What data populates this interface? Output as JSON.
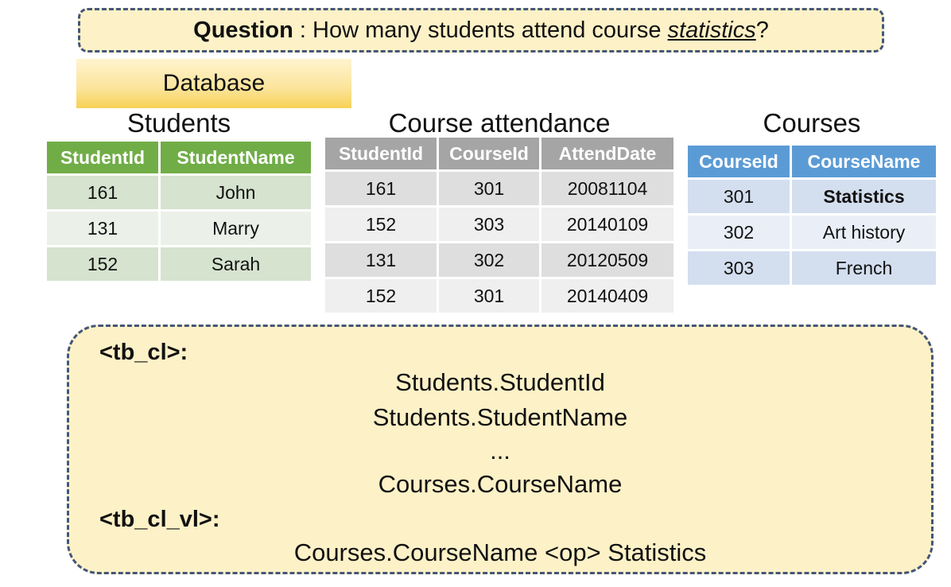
{
  "question": {
    "label": "Question",
    "sep": " : ",
    "text_before": "How many students attend course ",
    "keyword": "statistics",
    "text_after": "?"
  },
  "database_label": "Database",
  "students": {
    "title": "Students",
    "headers": [
      "StudentId",
      "StudentName"
    ],
    "rows": [
      [
        "161",
        "John"
      ],
      [
        "131",
        "Marry"
      ],
      [
        "152",
        "Sarah"
      ]
    ]
  },
  "attendance": {
    "title": "Course attendance",
    "headers": [
      "StudentId",
      "CourseId",
      "AttendDate"
    ],
    "rows": [
      [
        "161",
        "301",
        "20081104"
      ],
      [
        "152",
        "303",
        "20140109"
      ],
      [
        "131",
        "302",
        "20120509"
      ],
      [
        "152",
        "301",
        "20140409"
      ]
    ]
  },
  "courses": {
    "title": "Courses",
    "headers": [
      "CourseId",
      "CourseName"
    ],
    "rows": [
      [
        "301",
        "Statistics"
      ],
      [
        "302",
        "Art history"
      ],
      [
        "303",
        "French"
      ]
    ]
  },
  "schema": {
    "tb_cl_tag": "<tb_cl>:",
    "tb_cl_items": [
      "Students.StudentId",
      "Students.StudentName",
      "...",
      "Courses.CourseName"
    ],
    "tb_cl_vl_tag": "<tb_cl_vl>:",
    "tb_cl_vl_items": [
      "Courses.CourseName <op> Statistics"
    ]
  }
}
